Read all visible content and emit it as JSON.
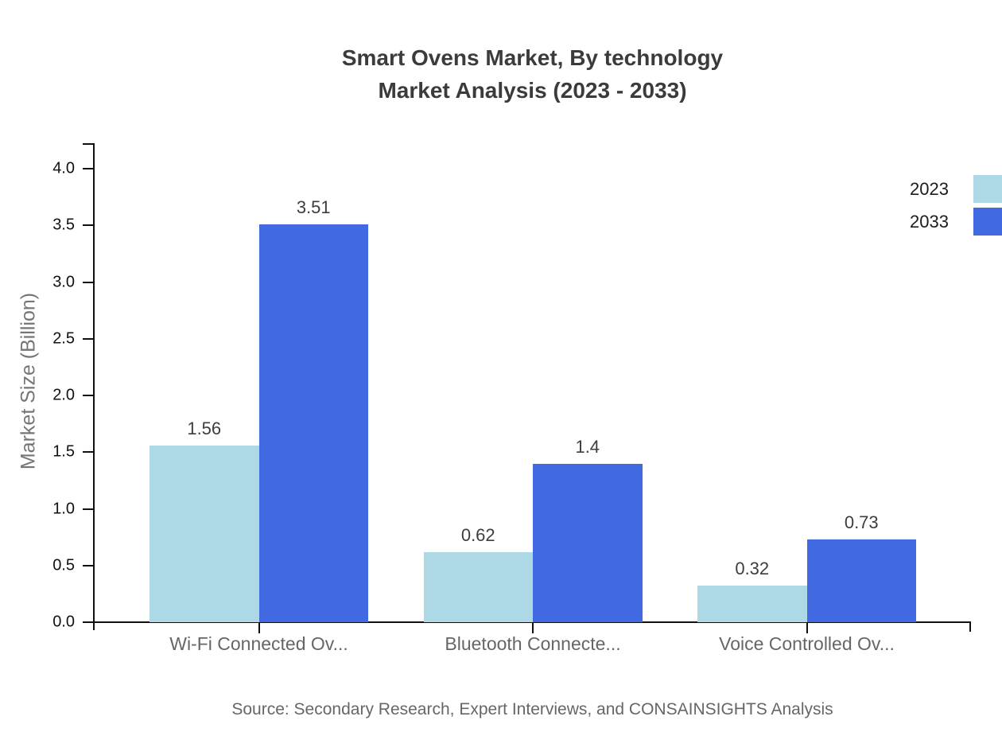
{
  "header": {
    "title_line1": "Smart Ovens Market, By technology",
    "title_line2": "Market Analysis (2023 - 2033)"
  },
  "source": "Source: Secondary Research, Expert Interviews, and CONSAINSIGHTS Analysis",
  "legend": {
    "items": [
      {
        "label": "2023",
        "color": "#ADD8E6"
      },
      {
        "label": "2033",
        "color": "#4169E1"
      }
    ]
  },
  "chart_data": {
    "type": "bar",
    "title": "Smart Ovens Market, By technology Market Analysis (2023 - 2033)",
    "categories": [
      "Wi-Fi Connected Ov...",
      "Bluetooth Connecte...",
      "Voice Controlled Ov..."
    ],
    "series": [
      {
        "name": "2023",
        "color": "#ADD8E6",
        "values": [
          1.56,
          0.62,
          0.32
        ],
        "labels": [
          "1.56",
          "0.62",
          "0.32"
        ]
      },
      {
        "name": "2033",
        "color": "#4169E1",
        "values": [
          3.51,
          1.4,
          0.73
        ],
        "labels": [
          "3.51",
          "1.4",
          "0.73"
        ]
      }
    ],
    "xlabel": "",
    "ylabel": "Market Size (Billion)",
    "ylim": [
      0.0,
      4.0
    ],
    "ytick_step": 0.5,
    "yticks": [
      "0.0",
      "0.5",
      "1.0",
      "1.5",
      "2.0",
      "2.5",
      "3.0",
      "3.5",
      "4.0"
    ],
    "grid": false,
    "legend_position": "top-right"
  }
}
